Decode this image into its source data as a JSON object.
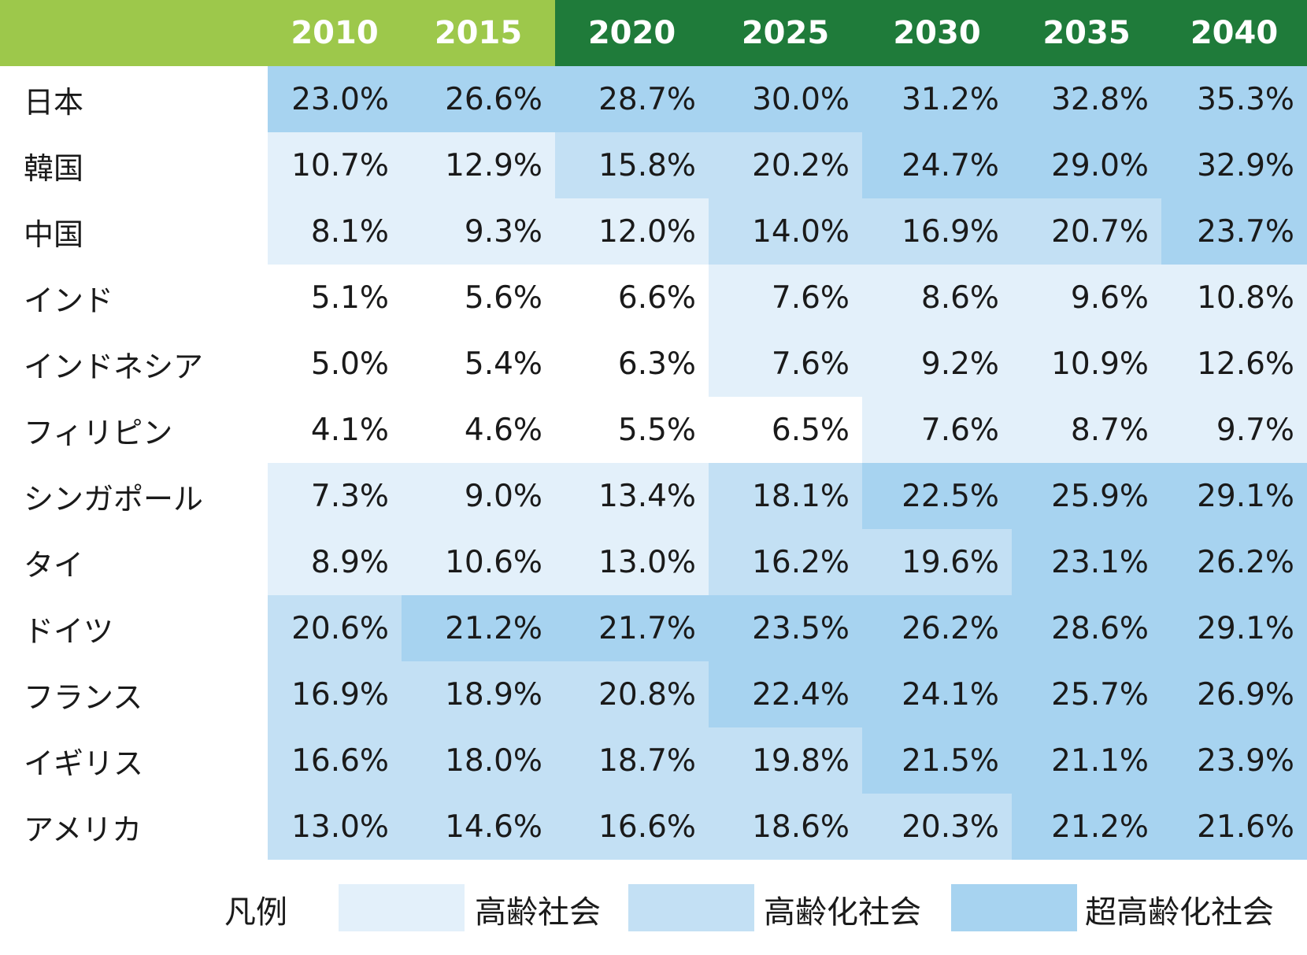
{
  "colors": {
    "header_light_green": "#9dc84b",
    "header_dark_green": "#1f7b3a",
    "aging": "#e3f0fa",
    "aged": "#c3e0f4",
    "super_aged": "#a7d3f0"
  },
  "chart_data": {
    "type": "table",
    "header_levels": [
      "aging",
      "aging",
      "super",
      "super",
      "super",
      "super",
      "super"
    ],
    "columns": [
      "2010",
      "2015",
      "2020",
      "2025",
      "2030",
      "2035",
      "2040"
    ],
    "rows": [
      {
        "label": "日本",
        "values": [
          "23.0%",
          "26.6%",
          "28.7%",
          "30.0%",
          "31.2%",
          "32.8%",
          "35.3%"
        ],
        "levels": [
          "super",
          "super",
          "super",
          "super",
          "super",
          "super",
          "super"
        ]
      },
      {
        "label": "韓国",
        "values": [
          "10.7%",
          "12.9%",
          "15.8%",
          "20.2%",
          "24.7%",
          "29.0%",
          "32.9%"
        ],
        "levels": [
          "aging",
          "aging",
          "aged",
          "aged",
          "super",
          "super",
          "super"
        ]
      },
      {
        "label": "中国",
        "values": [
          "8.1%",
          "9.3%",
          "12.0%",
          "14.0%",
          "16.9%",
          "20.7%",
          "23.7%"
        ],
        "levels": [
          "aging",
          "aging",
          "aging",
          "aged",
          "aged",
          "aged",
          "super"
        ]
      },
      {
        "label": "インド",
        "values": [
          "5.1%",
          "5.6%",
          "6.6%",
          "7.6%",
          "8.6%",
          "9.6%",
          "10.8%"
        ],
        "levels": [
          "none",
          "none",
          "none",
          "aging",
          "aging",
          "aging",
          "aging"
        ]
      },
      {
        "label": "インドネシア",
        "values": [
          "5.0%",
          "5.4%",
          "6.3%",
          "7.6%",
          "9.2%",
          "10.9%",
          "12.6%"
        ],
        "levels": [
          "none",
          "none",
          "none",
          "aging",
          "aging",
          "aging",
          "aging"
        ]
      },
      {
        "label": "フィリピン",
        "values": [
          "4.1%",
          "4.6%",
          "5.5%",
          "6.5%",
          "7.6%",
          "8.7%",
          "9.7%"
        ],
        "levels": [
          "none",
          "none",
          "none",
          "none",
          "aging",
          "aging",
          "aging"
        ]
      },
      {
        "label": "シンガポール",
        "values": [
          "7.3%",
          "9.0%",
          "13.4%",
          "18.1%",
          "22.5%",
          "25.9%",
          "29.1%"
        ],
        "levels": [
          "aging",
          "aging",
          "aging",
          "aged",
          "super",
          "super",
          "super"
        ]
      },
      {
        "label": "タイ",
        "values": [
          "8.9%",
          "10.6%",
          "13.0%",
          "16.2%",
          "19.6%",
          "23.1%",
          "26.2%"
        ],
        "levels": [
          "aging",
          "aging",
          "aging",
          "aged",
          "aged",
          "super",
          "super"
        ]
      },
      {
        "label": "ドイツ",
        "values": [
          "20.6%",
          "21.2%",
          "21.7%",
          "23.5%",
          "26.2%",
          "28.6%",
          "29.1%"
        ],
        "levels": [
          "aged",
          "super",
          "super",
          "super",
          "super",
          "super",
          "super"
        ]
      },
      {
        "label": "フランス",
        "values": [
          "16.9%",
          "18.9%",
          "20.8%",
          "22.4%",
          "24.1%",
          "25.7%",
          "26.9%"
        ],
        "levels": [
          "aged",
          "aged",
          "aged",
          "super",
          "super",
          "super",
          "super"
        ]
      },
      {
        "label": "イギリス",
        "values": [
          "16.6%",
          "18.0%",
          "18.7%",
          "19.8%",
          "21.5%",
          "21.1%",
          "23.9%"
        ],
        "levels": [
          "aged",
          "aged",
          "aged",
          "aged",
          "super",
          "super",
          "super"
        ]
      },
      {
        "label": "アメリカ",
        "values": [
          "13.0%",
          "14.6%",
          "16.6%",
          "18.6%",
          "20.3%",
          "21.2%",
          "21.6%"
        ],
        "levels": [
          "aged",
          "aged",
          "aged",
          "aged",
          "aged",
          "super",
          "super"
        ]
      }
    ]
  },
  "legend": {
    "title": "凡例",
    "items": [
      {
        "label": "高齢社会",
        "level": "aging"
      },
      {
        "label": "高齢化社会",
        "level": "aged"
      },
      {
        "label": "超高齢化社会",
        "level": "super"
      }
    ]
  }
}
